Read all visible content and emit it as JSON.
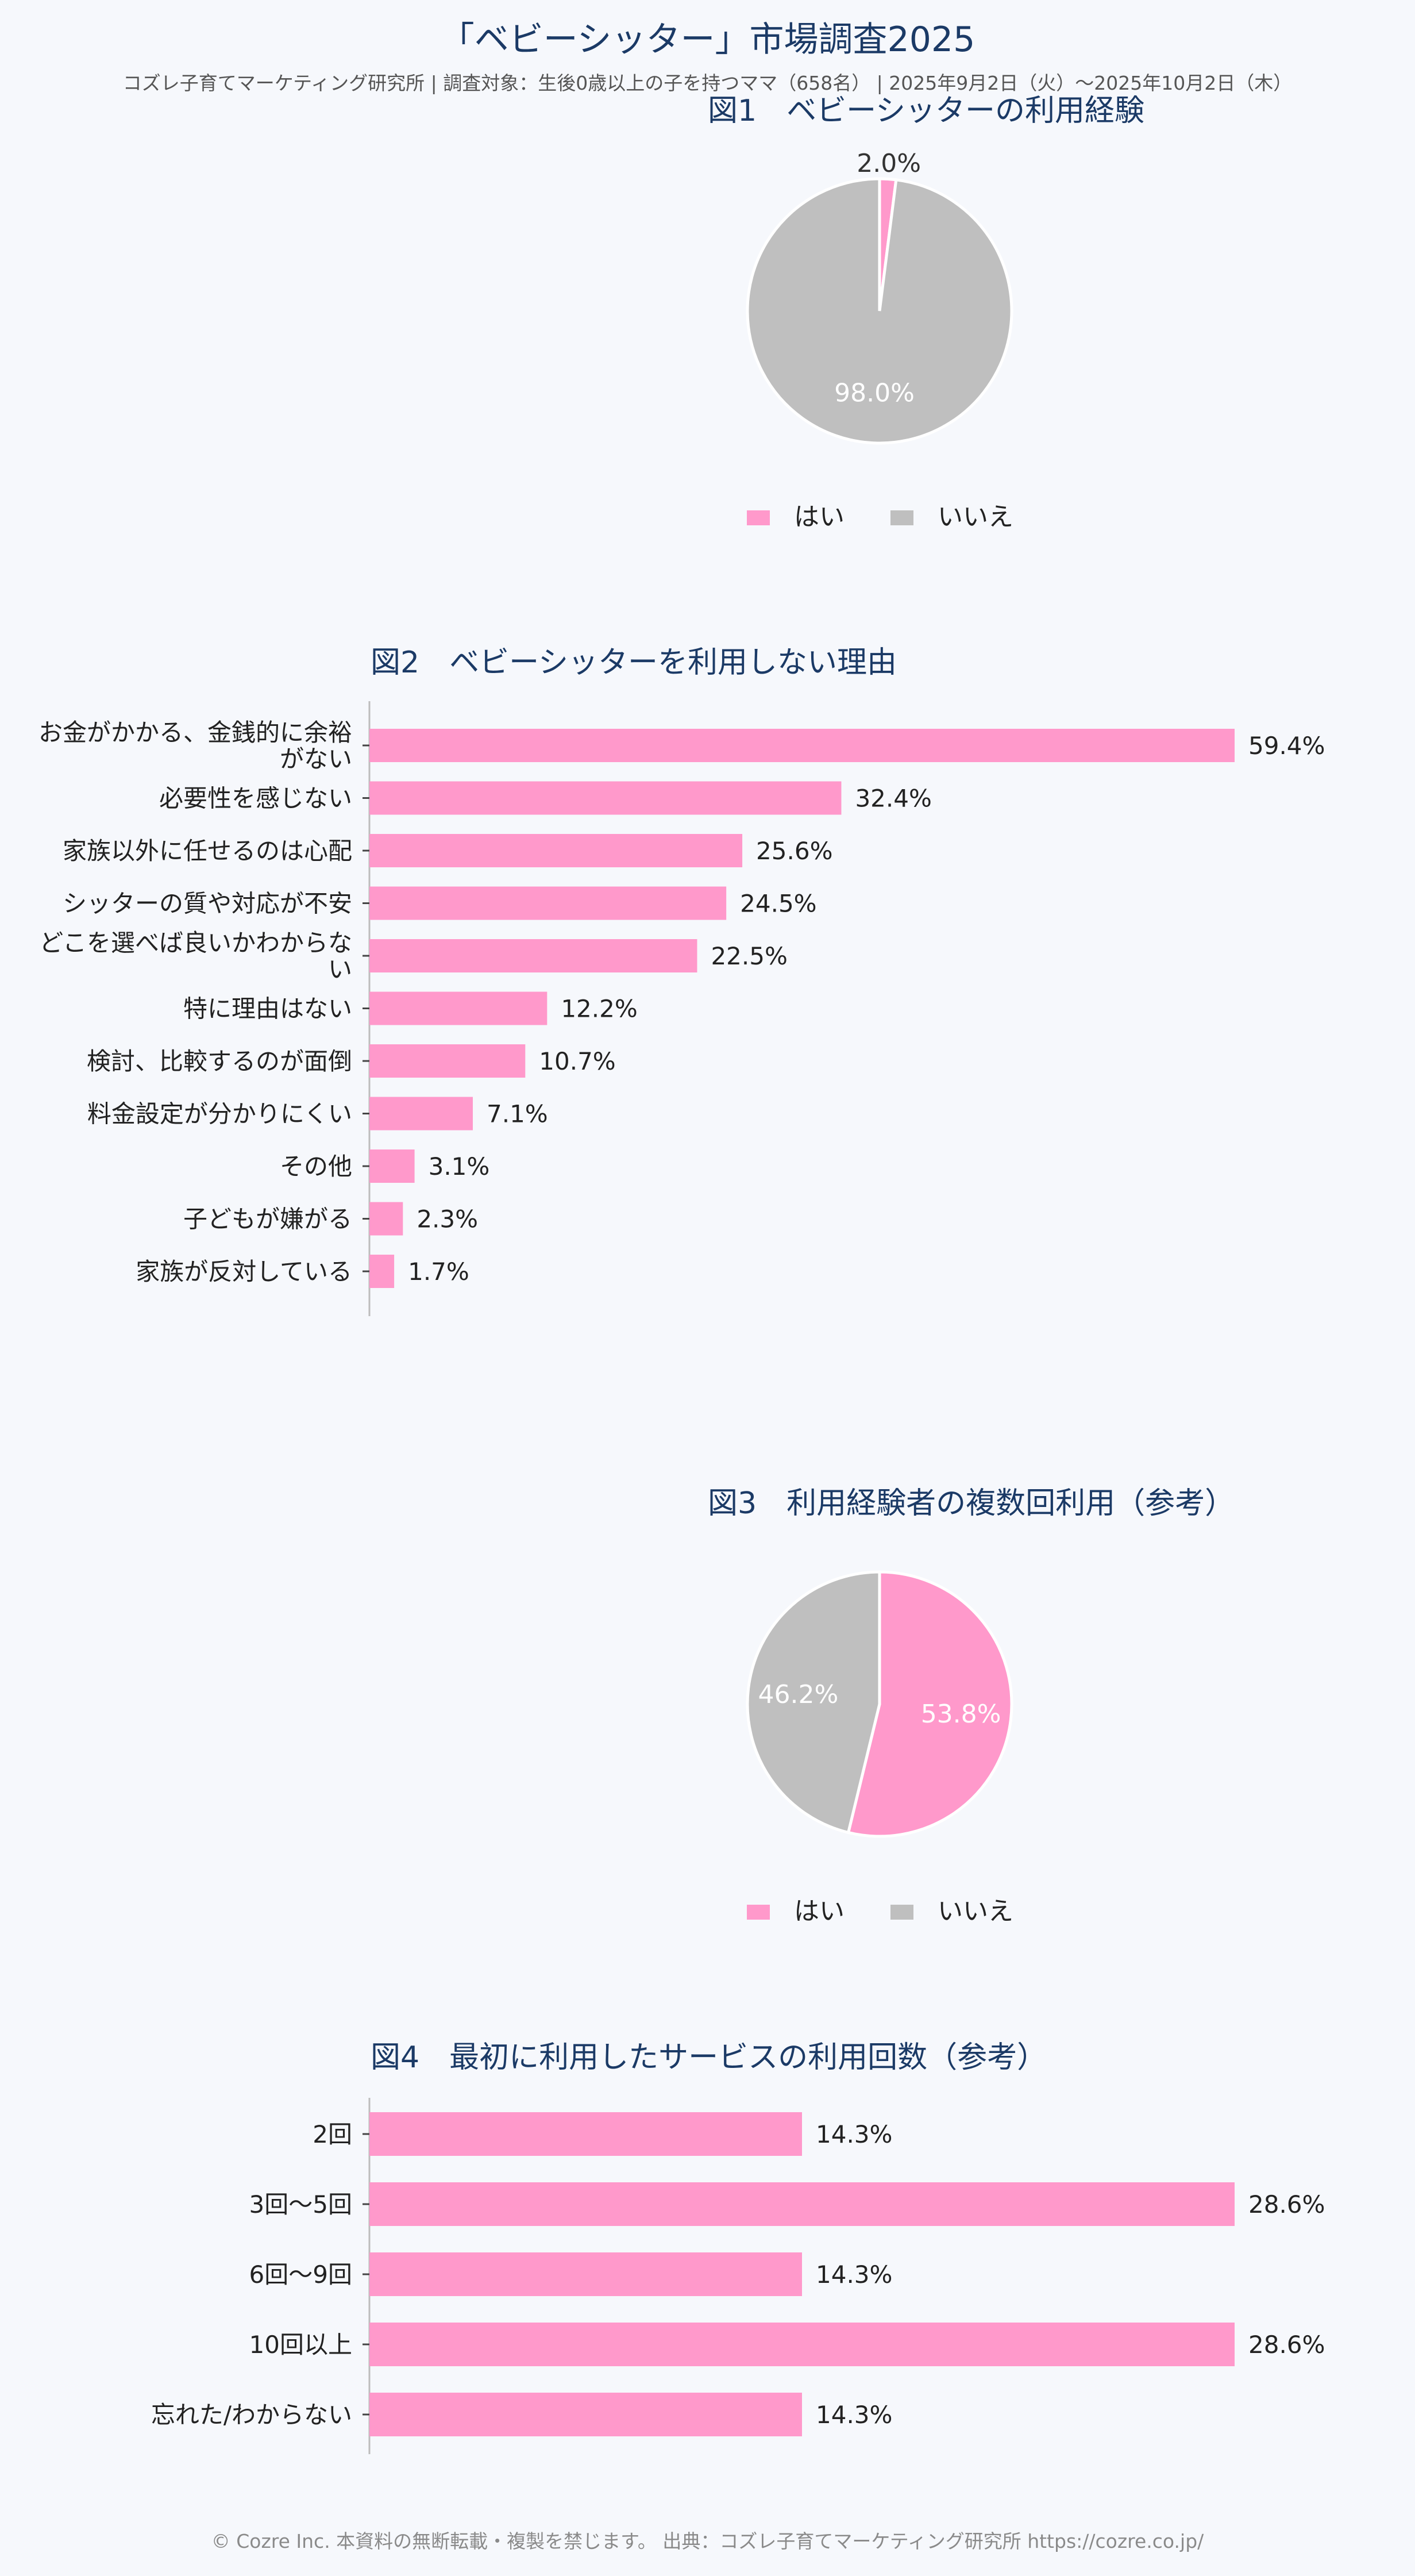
{
  "header": {
    "title": "「ベビーシッター」市場調査2025",
    "subtitle": "コズレ子育てマーケティング研究所 | 調査対象：生後0歳以上の子を持つママ（658名） | 2025年9月2日（火）〜2025年10月2日（木）"
  },
  "footer": {
    "text": "© Cozre Inc. 本資料の無断転載・複製を禁じます。 出典：コズレ子育てマーケティング研究所 https://cozre.co.jp/"
  },
  "colors": {
    "accent": "#ff99cb",
    "secondary": "#bfbfbf",
    "title": "#1b3a66"
  },
  "chart_data": [
    {
      "id": "fig1",
      "type": "pie",
      "title": "図1　ベビーシッターの利用経験",
      "categories": [
        "はい",
        "いいえ"
      ],
      "values": [
        2.0,
        98.0
      ],
      "labels": [
        "2.0%",
        "98.0%"
      ],
      "colors": [
        "#ff99cb",
        "#bfbfbf"
      ],
      "legend": "bottom"
    },
    {
      "id": "fig2",
      "type": "bar",
      "orientation": "horizontal",
      "title": "図2　ベビーシッターを利用しない理由",
      "categories": [
        [
          "お金がかかる、金銭的に余裕",
          "がない"
        ],
        [
          "必要性を感じない"
        ],
        [
          "家族以外に任せるのは心配"
        ],
        [
          "シッターの質や対応が不安"
        ],
        [
          "どこを選べば良いかわからな",
          "い"
        ],
        [
          "特に理由はない"
        ],
        [
          "検討、比較するのが面倒"
        ],
        [
          "料金設定が分かりにくい"
        ],
        [
          "その他"
        ],
        [
          "子どもが嫌がる"
        ],
        [
          "家族が反対している"
        ]
      ],
      "values": [
        59.4,
        32.4,
        25.6,
        24.5,
        22.5,
        12.2,
        10.7,
        7.1,
        3.1,
        2.3,
        1.7
      ],
      "labels": [
        "59.4%",
        "32.4%",
        "25.6%",
        "24.5%",
        "22.5%",
        "12.2%",
        "10.7%",
        "7.1%",
        "3.1%",
        "2.3%",
        "1.7%"
      ],
      "xlim": [
        0,
        59.4
      ],
      "color": "#ff99cb",
      "grid": false
    },
    {
      "id": "fig3",
      "type": "pie",
      "title": "図3　利用経験者の複数回利用（参考）",
      "categories": [
        "はい",
        "いいえ"
      ],
      "values": [
        53.8,
        46.2
      ],
      "labels": [
        "53.8%",
        "46.2%"
      ],
      "colors": [
        "#ff99cb",
        "#bfbfbf"
      ],
      "legend": "bottom"
    },
    {
      "id": "fig4",
      "type": "bar",
      "orientation": "horizontal",
      "title": "図4　最初に利用したサービスの利用回数（参考）",
      "categories": [
        [
          "2回"
        ],
        [
          "3回〜5回"
        ],
        [
          "6回〜9回"
        ],
        [
          "10回以上"
        ],
        [
          "忘れた/わからない"
        ]
      ],
      "values": [
        14.3,
        28.6,
        14.3,
        28.6,
        14.3
      ],
      "labels": [
        "14.3%",
        "28.6%",
        "14.3%",
        "28.6%",
        "14.3%"
      ],
      "xlim": [
        0,
        28.6
      ],
      "color": "#ff99cb",
      "grid": false
    }
  ]
}
